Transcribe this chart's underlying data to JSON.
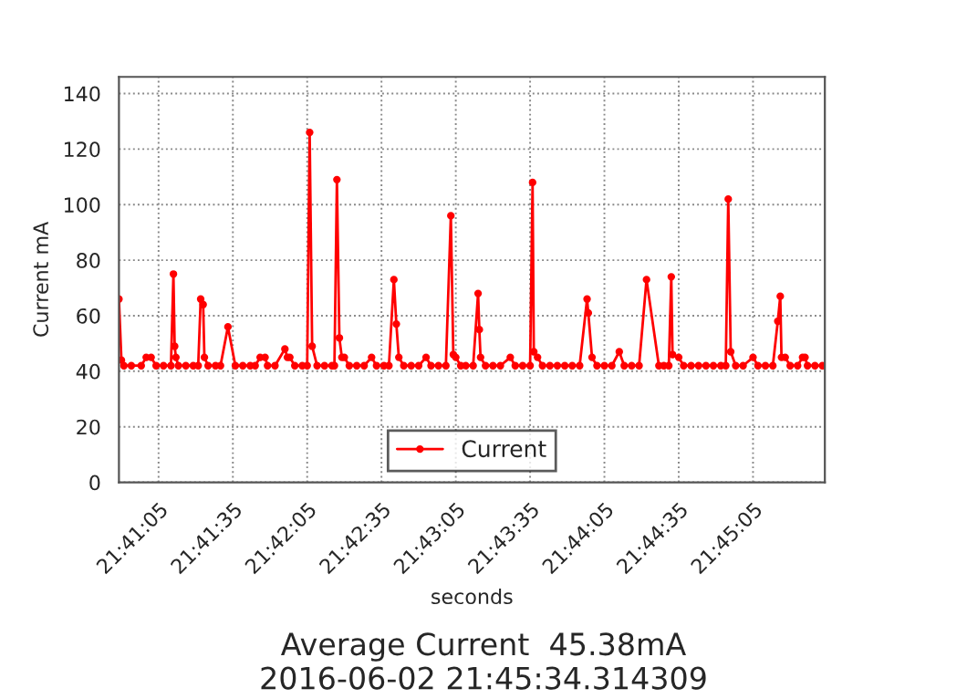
{
  "chart_data": {
    "type": "line",
    "xlabel": "seconds",
    "ylabel": "Current mA",
    "x": [
      78049,
      78050,
      78051,
      78054,
      78058,
      78060,
      78062,
      78064,
      78067,
      78070,
      78071,
      78071.5,
      78072,
      78073,
      78076,
      78079,
      78081,
      78082,
      78083,
      78083.5,
      78085,
      78088,
      78090,
      78093,
      78096,
      78099,
      78102,
      78104,
      78106,
      78108,
      78109,
      78112,
      78116,
      78117,
      78118,
      78120,
      78123,
      78125,
      78126,
      78127,
      78129,
      78132,
      78135,
      78136,
      78137,
      78138,
      78139,
      78140,
      78142,
      78145,
      78148,
      78151,
      78153,
      78156,
      78158,
      78160,
      78161,
      78162,
      78164,
      78167,
      78170,
      78173,
      78175,
      78178,
      78181,
      78183,
      78184,
      78185,
      78187,
      78189,
      78192,
      78194,
      78194.5,
      78195,
      78197,
      78200,
      78203,
      78207,
      78209,
      78212,
      78215,
      78216,
      78216.5,
      78218,
      78220,
      78223,
      78226,
      78229,
      78232,
      78235,
      78238,
      78238.5,
      78240,
      78242,
      78245,
      78248,
      78251,
      78253,
      78256,
      78259,
      78262,
      78267,
      78269,
      78271,
      78272,
      78272.5,
      78275,
      78277,
      78280,
      78283,
      78286,
      78289,
      78292,
      78294,
      78295,
      78296,
      78298,
      78301,
      78305,
      78307,
      78310,
      78313,
      78315,
      78316,
      78316.5,
      78318,
      78320,
      78323,
      78325,
      78326,
      78327,
      78330,
      78333
    ],
    "series": [
      {
        "name": "Current",
        "color": "#ff0000",
        "values": [
          66,
          44,
          42,
          42,
          42,
          45,
          45,
          42,
          42,
          42,
          75,
          49,
          45,
          42,
          42,
          42,
          42,
          66,
          64,
          45,
          42,
          42,
          42,
          56,
          42,
          42,
          42,
          42,
          45,
          45,
          42,
          42,
          48,
          45,
          45,
          42,
          42,
          42,
          126,
          49,
          42,
          42,
          42,
          42,
          109,
          52,
          45,
          45,
          42,
          42,
          42,
          45,
          42,
          42,
          42,
          73,
          57,
          45,
          42,
          42,
          42,
          45,
          42,
          42,
          42,
          96,
          46,
          45,
          42,
          42,
          42,
          68,
          55,
          45,
          42,
          42,
          42,
          45,
          42,
          42,
          42,
          108,
          47,
          45,
          42,
          42,
          42,
          42,
          42,
          42,
          66,
          61,
          45,
          42,
          42,
          42,
          47,
          42,
          42,
          42,
          73,
          42,
          42,
          42,
          74,
          46,
          45,
          42,
          42,
          42,
          42,
          42,
          42,
          42,
          102,
          47,
          42,
          42,
          45,
          42,
          42,
          42,
          58,
          67,
          45,
          45,
          42,
          42,
          45,
          45,
          42,
          42,
          42
        ]
      }
    ],
    "xlim": [
      78049,
      78334
    ],
    "xticks": [
      {
        "value": 78065,
        "label": "21:41:05"
      },
      {
        "value": 78095,
        "label": "21:41:35"
      },
      {
        "value": 78125,
        "label": "21:42:05"
      },
      {
        "value": 78155,
        "label": "21:42:35"
      },
      {
        "value": 78185,
        "label": "21:43:05"
      },
      {
        "value": 78215,
        "label": "21:43:35"
      },
      {
        "value": 78245,
        "label": "21:44:05"
      },
      {
        "value": 78275,
        "label": "21:44:35"
      },
      {
        "value": 78305,
        "label": "21:45:05"
      }
    ],
    "ylim": [
      0,
      146
    ],
    "yticks": [
      0,
      20,
      40,
      60,
      80,
      100,
      120,
      140
    ],
    "grid": true,
    "legend": "bottom",
    "marker": "circle",
    "line_style": "solid",
    "annotations": [
      "Average Current  45.38mA",
      "2016-06-02 21:45:34.314309"
    ]
  }
}
